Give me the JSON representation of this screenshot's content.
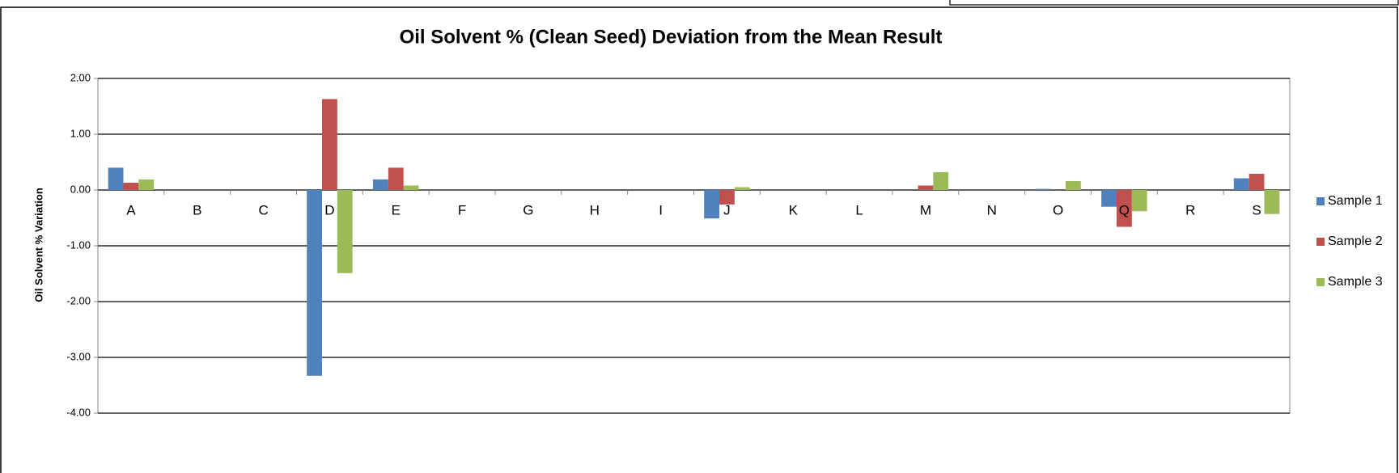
{
  "chart_data": {
    "type": "bar",
    "title": "Oil Solvent % (Clean Seed) Deviation from the Mean Result",
    "y_label": "Oil Solvent % Variation",
    "categories": [
      "A",
      "B",
      "C",
      "D",
      "E",
      "F",
      "G",
      "H",
      "I",
      "J",
      "K",
      "L",
      "M",
      "N",
      "O",
      "Q",
      "R",
      "S"
    ],
    "series": [
      {
        "name": "Sample 1",
        "color": "#4f81bd",
        "values": [
          0.4,
          null,
          null,
          -3.33,
          0.19,
          null,
          null,
          null,
          null,
          -0.51,
          null,
          null,
          null,
          null,
          0.02,
          -0.3,
          null,
          0.21
        ]
      },
      {
        "name": "Sample 2",
        "color": "#c0504d",
        "values": [
          0.13,
          null,
          null,
          1.63,
          0.4,
          null,
          null,
          null,
          null,
          -0.26,
          null,
          null,
          0.08,
          null,
          null,
          -0.66,
          null,
          0.29
        ]
      },
      {
        "name": "Sample 3",
        "color": "#9bbb59",
        "values": [
          0.19,
          null,
          null,
          -1.49,
          0.08,
          null,
          null,
          null,
          null,
          0.05,
          null,
          null,
          0.32,
          null,
          0.16,
          -0.38,
          null,
          -0.43
        ]
      }
    ],
    "ylim": [
      -4,
      2
    ],
    "yticks": [
      {
        "value": -4,
        "label": "-4.00"
      },
      {
        "value": -3,
        "label": "-3.00"
      },
      {
        "value": -2,
        "label": "-2.00"
      },
      {
        "value": -1,
        "label": "-1.00"
      },
      {
        "value": 0,
        "label": "0.00"
      },
      {
        "value": 1,
        "label": "1.00"
      },
      {
        "value": 2,
        "label": "2.00"
      }
    ],
    "grid": true,
    "legend": "right"
  }
}
